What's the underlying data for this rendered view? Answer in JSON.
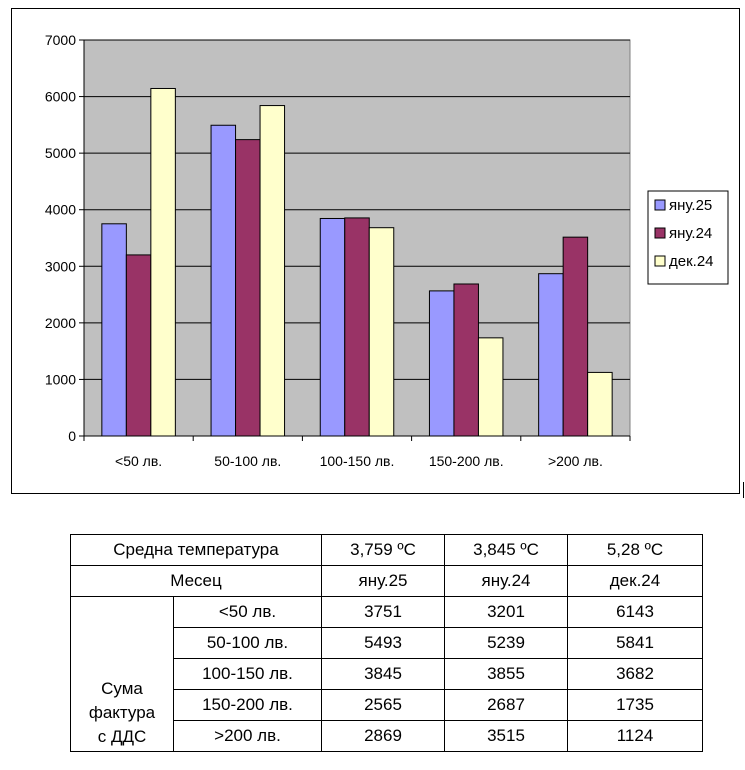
{
  "chart_data": {
    "type": "bar",
    "categories": [
      "<50 лв.",
      "50-100 лв.",
      "100-150 лв.",
      "150-200 лв.",
      ">200 лв."
    ],
    "series": [
      {
        "name": "яну.25",
        "color": "#9999ff",
        "values": [
          3751,
          5493,
          3845,
          2565,
          2869
        ]
      },
      {
        "name": "яну.24",
        "color": "#993366",
        "values": [
          3201,
          5239,
          3855,
          2687,
          3515
        ]
      },
      {
        "name": "дек.24",
        "color": "#ffffcc",
        "values": [
          6143,
          5841,
          3682,
          1735,
          1124
        ]
      }
    ],
    "yticks": [
      "0",
      "1000",
      "2000",
      "3000",
      "4000",
      "5000",
      "6000",
      "7000"
    ],
    "ylim": [
      0,
      7000
    ],
    "plot_bg": "#c0c0c0",
    "grid": true,
    "legend_position": "right"
  },
  "table": {
    "temp_label": "Средна температура",
    "temps": [
      "3,759 ºC",
      "3,845 ºC",
      "5,28 ºC"
    ],
    "month_label": "Месец",
    "months": [
      "яну.25",
      "яну.24",
      "дек.24"
    ],
    "row_group_label_lines": [
      "Сума",
      "фактура",
      "с ДДС"
    ],
    "rows": [
      {
        "range": "<50 лв.",
        "values": [
          "3751",
          "3201",
          "6143"
        ]
      },
      {
        "range": "50-100 лв.",
        "values": [
          "5493",
          "5239",
          "5841"
        ]
      },
      {
        "range": "100-150 лв.",
        "values": [
          "3845",
          "3855",
          "3682"
        ]
      },
      {
        "range": "150-200 лв.",
        "values": [
          "2565",
          "2687",
          "1735"
        ]
      },
      {
        "range": ">200 лв.",
        "values": [
          "2869",
          "3515",
          "1124"
        ]
      }
    ]
  }
}
